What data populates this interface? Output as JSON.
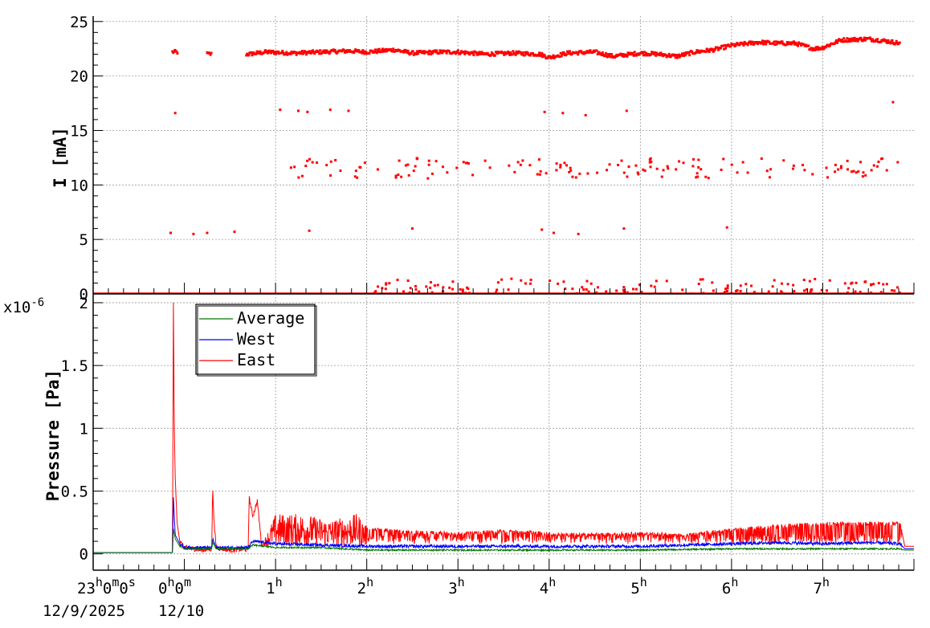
{
  "chart_data": [
    {
      "type": "scatter",
      "ylabel": "I [mA]",
      "ylim": [
        0,
        25.5
      ],
      "y_ticks": [
        "0",
        "5",
        "10",
        "15",
        "20",
        "25"
      ],
      "grid": true,
      "series": [
        {
          "color": "#ff0000",
          "main_band": {
            "x_hours": [
              -0.1,
              0.3,
              0.7,
              0.9,
              1.2,
              1.5,
              1.8,
              2.0,
              2.3,
              2.5,
              2.8,
              3.0,
              3.3,
              3.6,
              3.9,
              4.0,
              4.2,
              4.5,
              4.7,
              5.0,
              5.2,
              5.4,
              5.6,
              5.8,
              6.0,
              6.3,
              6.5,
              6.7,
              6.9,
              7.0,
              7.2,
              7.5,
              7.7,
              7.85
            ],
            "y_mA": [
              22.2,
              22.0,
              22.0,
              22.2,
              22.1,
              22.2,
              22.3,
              22.2,
              22.4,
              22.1,
              22.2,
              22.2,
              22.0,
              22.1,
              22.0,
              21.7,
              22.1,
              22.2,
              21.8,
              22.1,
              22.0,
              21.8,
              22.2,
              22.4,
              22.8,
              23.1,
              23.0,
              23.0,
              22.5,
              22.6,
              23.3,
              23.4,
              23.2,
              23.0
            ]
          },
          "secondary_points": [
            {
              "x_hours": -0.1,
              "y_mA": 16.6
            },
            {
              "x_hours": 1.05,
              "y_mA": 16.9
            },
            {
              "x_hours": 1.25,
              "y_mA": 16.8
            },
            {
              "x_hours": 1.35,
              "y_mA": 16.7
            },
            {
              "x_hours": 1.6,
              "y_mA": 16.9
            },
            {
              "x_hours": 1.8,
              "y_mA": 16.8
            },
            {
              "x_hours": 3.95,
              "y_mA": 16.7
            },
            {
              "x_hours": 4.15,
              "y_mA": 16.6
            },
            {
              "x_hours": 4.4,
              "y_mA": 16.4
            },
            {
              "x_hours": 4.85,
              "y_mA": 16.8
            },
            {
              "x_hours": 7.77,
              "y_mA": 17.6
            },
            {
              "x_hours": -0.15,
              "y_mA": 5.6
            },
            {
              "x_hours": 0.1,
              "y_mA": 5.5
            },
            {
              "x_hours": 0.25,
              "y_mA": 5.6
            },
            {
              "x_hours": 0.55,
              "y_mA": 5.7
            },
            {
              "x_hours": 1.37,
              "y_mA": 5.8
            },
            {
              "x_hours": 2.5,
              "y_mA": 6.0
            },
            {
              "x_hours": 3.92,
              "y_mA": 5.9
            },
            {
              "x_hours": 4.05,
              "y_mA": 5.6
            },
            {
              "x_hours": 4.32,
              "y_mA": 5.5
            },
            {
              "x_hours": 4.82,
              "y_mA": 6.0
            },
            {
              "x_hours": 5.95,
              "y_mA": 6.1
            }
          ],
          "band_near_11mA": {
            "x_range_hours": [
              1.15,
              7.85
            ],
            "y_range_mA": [
              10.6,
              12.5
            ]
          },
          "band_near_0mA": {
            "x_range_hours": [
              2.0,
              7.85
            ],
            "y_range_mA": [
              0.0,
              1.4
            ]
          }
        }
      ]
    },
    {
      "type": "line",
      "ylabel": "Pressure [Pa]",
      "y_multiplier": "x10",
      "y_multiplier_exp": "-6",
      "ylim": [
        -0.13,
        2.07
      ],
      "y_ticks": [
        "0",
        "0.5",
        "1",
        "1.5",
        "2"
      ],
      "x_label_line1": "23",
      "x_ticks": [
        {
          "hours": -0.15,
          "label": "0",
          "sup": "h"
        },
        {
          "hours": 1,
          "label": "1",
          "sup": "h"
        },
        {
          "hours": 2,
          "label": "2",
          "sup": "h"
        },
        {
          "hours": 3,
          "label": "3",
          "sup": "h"
        },
        {
          "hours": 4,
          "label": "4",
          "sup": "h"
        },
        {
          "hours": 5,
          "label": "5",
          "sup": "h"
        },
        {
          "hours": 6,
          "label": "6",
          "sup": "h"
        },
        {
          "hours": 7,
          "label": "7",
          "sup": "h"
        }
      ],
      "x_start_label": {
        "h": "23",
        "m": "0",
        "s": "0",
        "date": "12/9/2025"
      },
      "x_midnight_label": {
        "h": "0",
        "m": "0",
        "date": "12/10"
      },
      "xlim_hours": [
        -1.0,
        8.0
      ],
      "grid": true,
      "legend": {
        "position": "top-left",
        "entries": [
          "Average",
          "West",
          "East"
        ]
      },
      "series": [
        {
          "name": "Average",
          "color": "#007700",
          "x_hours": [
            -1.0,
            -0.13,
            -0.12,
            -0.1,
            -0.05,
            0.0,
            0.3,
            0.31,
            0.35,
            0.7,
            0.75,
            1.0,
            1.5,
            2.0,
            3.0,
            4.0,
            5.0,
            6.0,
            7.0,
            7.85,
            7.9,
            8.0
          ],
          "y": [
            0.01,
            0.01,
            0.2,
            0.12,
            0.06,
            0.04,
            0.04,
            0.09,
            0.04,
            0.04,
            0.07,
            0.05,
            0.05,
            0.03,
            0.03,
            0.03,
            0.03,
            0.04,
            0.04,
            0.04,
            0.03,
            0.03
          ]
        },
        {
          "name": "West",
          "color": "#0000ff",
          "x_hours": [
            -1.0,
            -0.13,
            -0.12,
            -0.1,
            -0.05,
            0.0,
            0.3,
            0.31,
            0.35,
            0.7,
            0.75,
            1.0,
            1.5,
            2.0,
            3.0,
            4.0,
            5.0,
            6.0,
            6.5,
            7.0,
            7.5,
            7.85,
            7.9,
            8.0
          ],
          "y": [
            0.01,
            0.01,
            0.45,
            0.15,
            0.08,
            0.05,
            0.05,
            0.12,
            0.05,
            0.05,
            0.1,
            0.08,
            0.07,
            0.06,
            0.06,
            0.06,
            0.06,
            0.08,
            0.09,
            0.08,
            0.09,
            0.08,
            0.04,
            0.04
          ]
        },
        {
          "name": "East",
          "color": "#ff0000",
          "x_hours": [
            -1.0,
            -0.13,
            -0.12,
            -0.11,
            -0.1,
            -0.08,
            -0.05,
            0.0,
            0.2,
            0.3,
            0.31,
            0.33,
            0.35,
            0.5,
            0.7,
            0.71,
            0.75,
            0.8,
            0.85,
            1.0,
            1.3,
            1.6,
            1.9,
            2.0,
            2.5,
            3.0,
            3.5,
            4.0,
            4.5,
            5.0,
            5.5,
            6.0,
            6.5,
            7.0,
            7.5,
            7.85,
            7.9,
            8.0
          ],
          "y": [
            0.01,
            0.01,
            2.0,
            1.0,
            0.6,
            0.25,
            0.1,
            0.05,
            0.03,
            0.04,
            0.52,
            0.2,
            0.05,
            0.03,
            0.04,
            0.45,
            0.3,
            0.42,
            0.05,
            0.3,
            0.3,
            0.25,
            0.3,
            0.2,
            0.17,
            0.16,
            0.18,
            0.16,
            0.15,
            0.16,
            0.15,
            0.19,
            0.22,
            0.24,
            0.24,
            0.24,
            0.06,
            0.06
          ]
        }
      ]
    }
  ]
}
